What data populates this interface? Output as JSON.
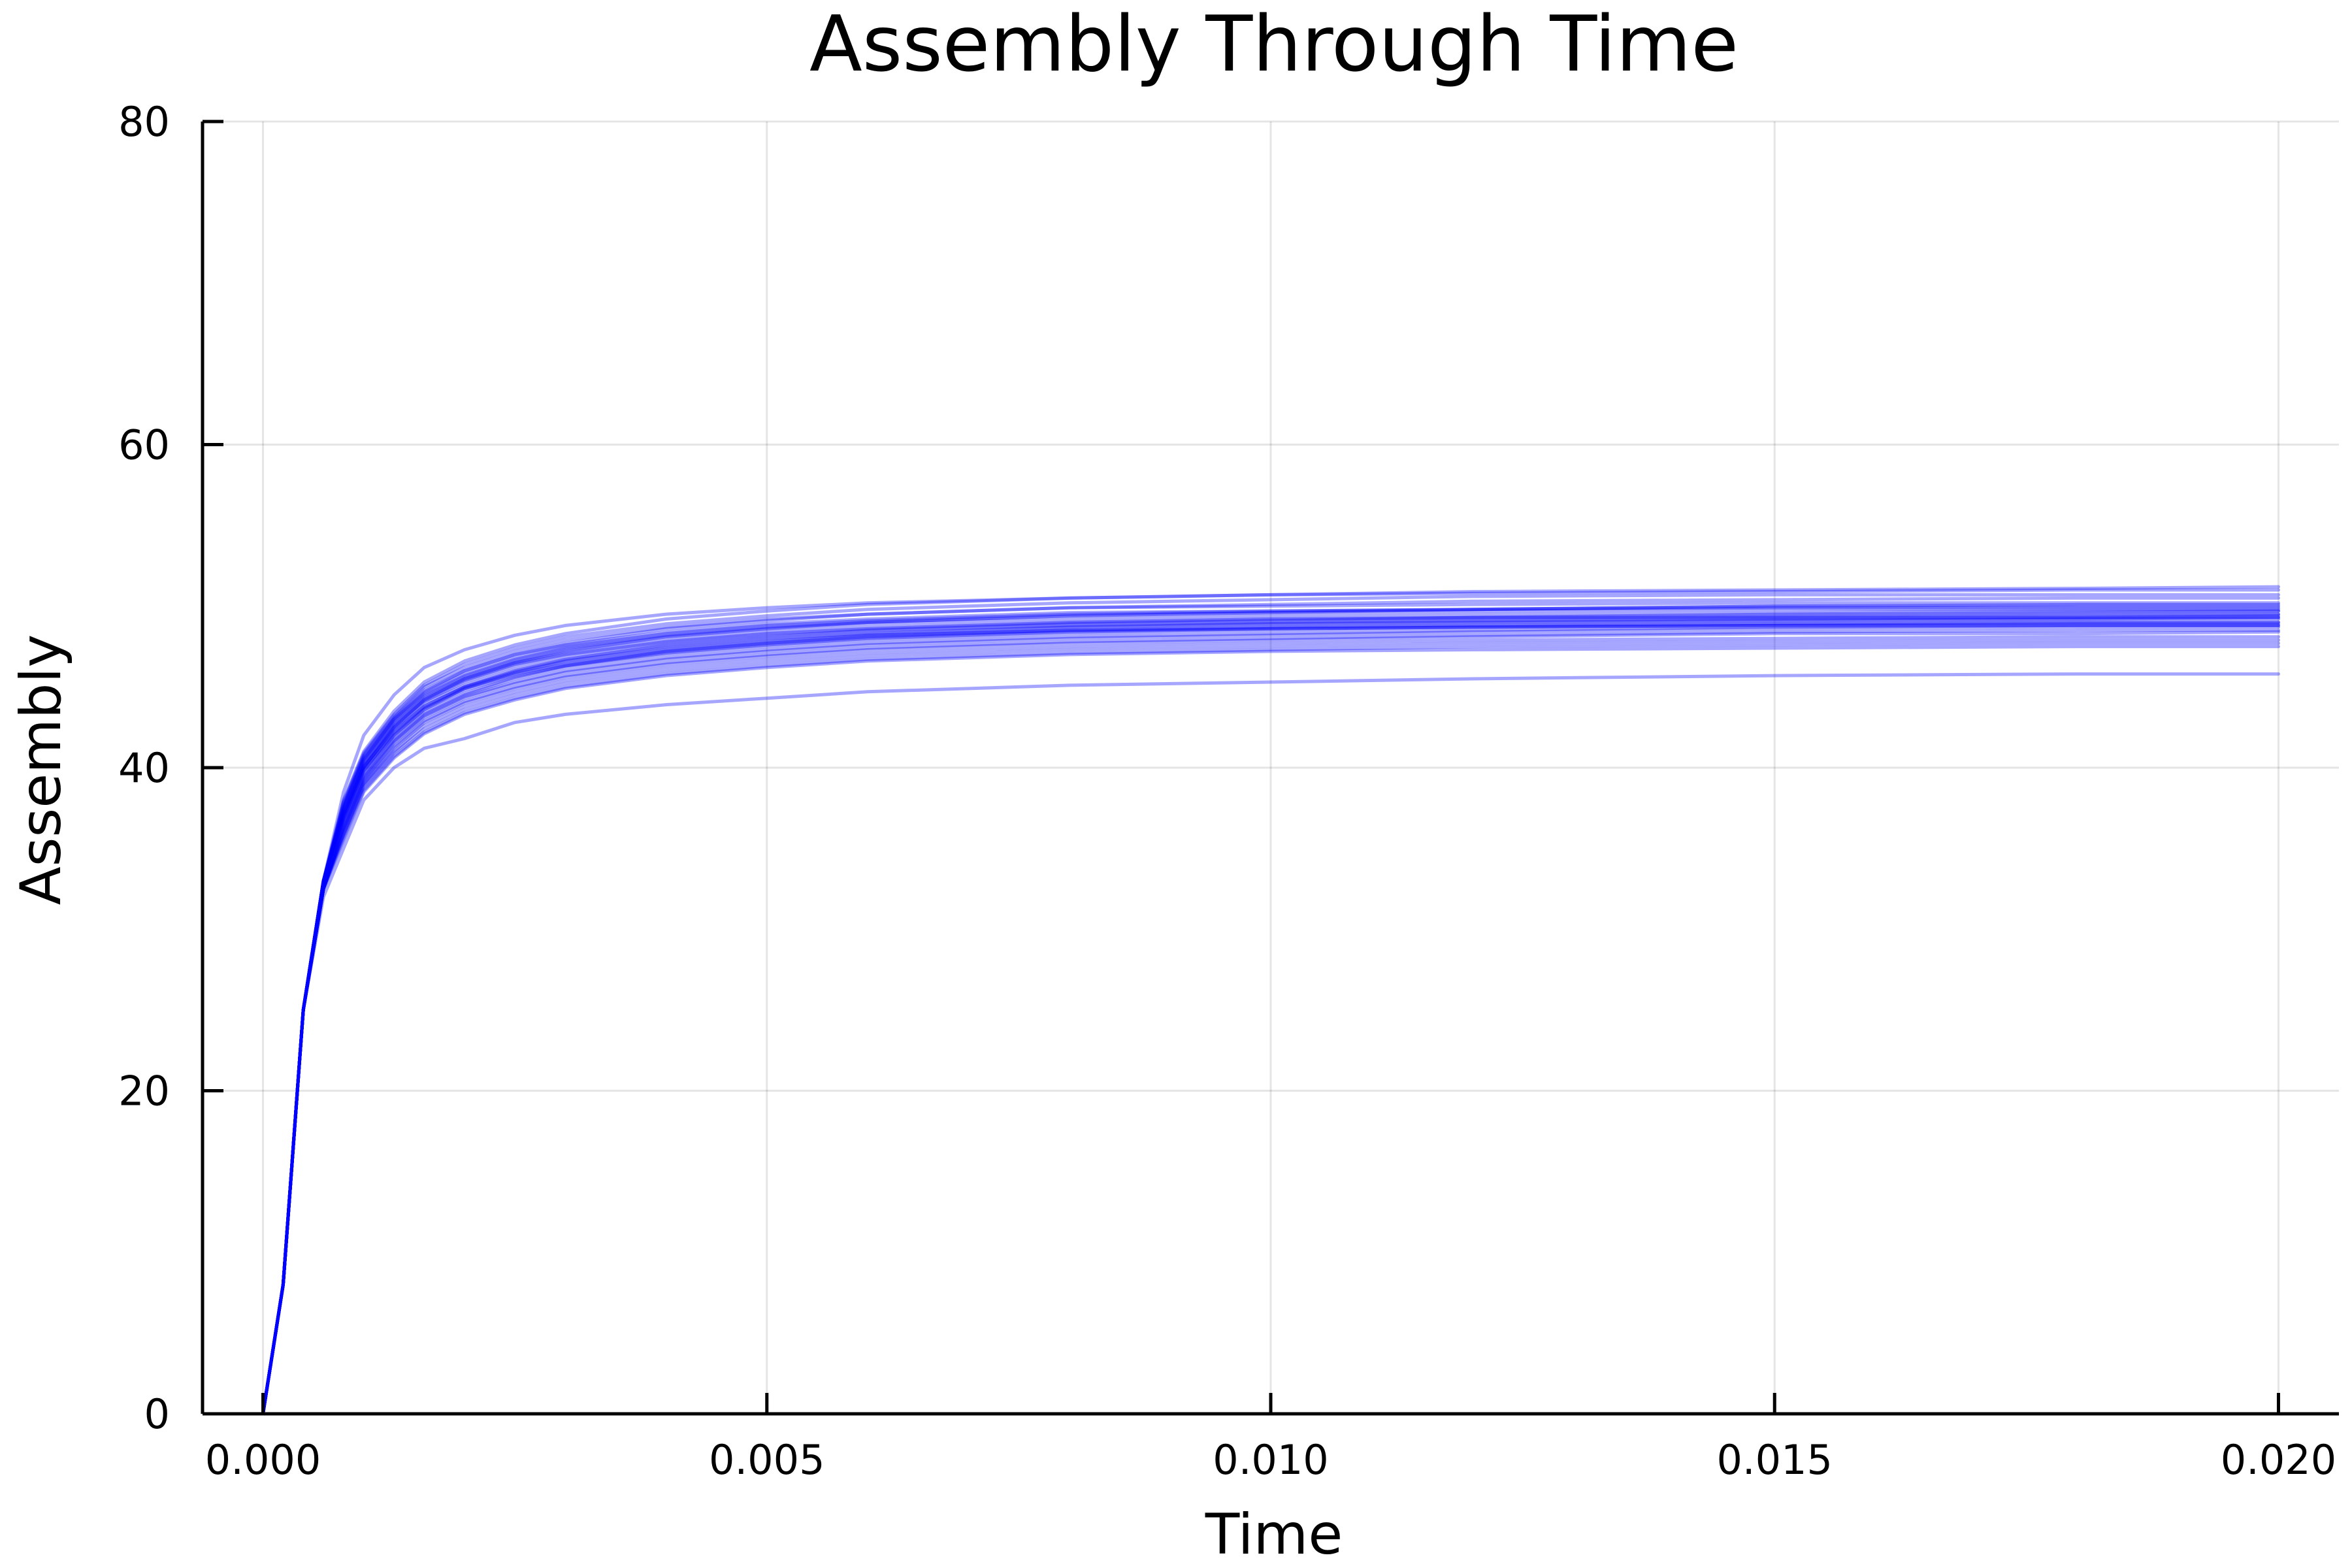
{
  "chart_data": {
    "type": "line",
    "title": "Assembly Through Time",
    "xlabel": "Time",
    "ylabel": "Assembly",
    "xlim": [
      -0.0006,
      0.0206
    ],
    "ylim": [
      0,
      80
    ],
    "grid": true,
    "legend": "none",
    "line_color": "#0000ff",
    "line_opacity": 0.35,
    "x_ticks": [
      {
        "value": 0.0,
        "label": "0.000"
      },
      {
        "value": 0.005,
        "label": "0.005"
      },
      {
        "value": 0.01,
        "label": "0.010"
      },
      {
        "value": 0.015,
        "label": "0.015"
      },
      {
        "value": 0.02,
        "label": "0.020"
      }
    ],
    "y_ticks": [
      {
        "value": 0,
        "label": "0"
      },
      {
        "value": 20,
        "label": "20"
      },
      {
        "value": 40,
        "label": "40"
      },
      {
        "value": 60,
        "label": "60"
      },
      {
        "value": 80,
        "label": "80"
      }
    ],
    "x": [
      0,
      0.0002,
      0.0004,
      0.0006,
      0.0008,
      0.001,
      0.0013,
      0.0016,
      0.002,
      0.0025,
      0.003,
      0.004,
      0.005,
      0.006,
      0.008,
      0.01,
      0.012,
      0.015,
      0.018,
      0.02
    ],
    "series": [
      {
        "values": [
          0,
          8,
          25,
          33,
          38,
          41,
          43.5,
          45.3,
          46.6,
          47.6,
          48.3,
          49.2,
          49.7,
          50.1,
          50.5,
          50.7,
          50.8,
          50.9,
          51.0,
          51.0
        ]
      },
      {
        "values": [
          0,
          8,
          25,
          33,
          37.5,
          40.5,
          43,
          44.7,
          46,
          47,
          47.7,
          48.6,
          49.1,
          49.5,
          49.9,
          50.1,
          50.3,
          50.4,
          50.5,
          50.5
        ]
      },
      {
        "values": [
          0,
          8,
          25,
          33,
          38.5,
          42,
          44.5,
          46.2,
          47.3,
          48.2,
          48.8,
          49.5,
          49.9,
          50.2,
          50.5,
          50.7,
          50.9,
          51.0,
          51.1,
          51.2
        ]
      },
      {
        "values": [
          0,
          8,
          25,
          32.5,
          37,
          40,
          42.5,
          44.2,
          45.5,
          46.5,
          47.2,
          48.1,
          48.6,
          49.0,
          49.4,
          49.6,
          49.8,
          50.0,
          50.1,
          50.1
        ]
      },
      {
        "values": [
          0,
          8,
          25,
          33,
          37.8,
          40.8,
          43.2,
          45,
          46.2,
          47.2,
          47.9,
          48.7,
          49.2,
          49.5,
          49.9,
          50.0,
          50.1,
          50.2,
          50.2,
          50.2
        ]
      },
      {
        "values": [
          0,
          8,
          25,
          32.5,
          36.8,
          39.8,
          42.2,
          43.8,
          45,
          46,
          46.7,
          47.6,
          48.1,
          48.5,
          48.9,
          49.1,
          49.3,
          49.5,
          49.6,
          49.7
        ]
      },
      {
        "values": [
          0,
          8,
          25,
          33,
          37.6,
          40.6,
          43,
          44.6,
          45.8,
          46.8,
          47.5,
          48.3,
          48.8,
          49.1,
          49.5,
          49.7,
          49.8,
          50.0,
          50.0,
          50.0
        ]
      },
      {
        "values": [
          0,
          8,
          25,
          32.5,
          36.5,
          39.5,
          41.8,
          43.4,
          44.6,
          45.6,
          46.3,
          47.2,
          47.7,
          48.1,
          48.5,
          48.7,
          48.9,
          49.1,
          49.2,
          49.3
        ]
      },
      {
        "values": [
          0,
          8,
          25,
          33,
          37.7,
          40.7,
          43.1,
          44.8,
          46,
          47,
          47.6,
          48.4,
          48.9,
          49.2,
          49.6,
          49.7,
          49.8,
          49.9,
          49.9,
          49.9
        ]
      },
      {
        "values": [
          0,
          8,
          25,
          32.5,
          36.6,
          39.6,
          42,
          43.6,
          44.9,
          45.9,
          46.6,
          47.4,
          47.9,
          48.3,
          48.7,
          48.9,
          49.1,
          49.3,
          49.4,
          49.5
        ]
      },
      {
        "values": [
          0,
          8,
          25,
          33,
          37.4,
          40.4,
          42.8,
          44.4,
          45.6,
          46.6,
          47.3,
          48.1,
          48.6,
          48.9,
          49.2,
          49.4,
          49.5,
          49.6,
          49.7,
          49.7
        ]
      },
      {
        "values": [
          0,
          8,
          25,
          32.5,
          36.4,
          39.4,
          41.7,
          43.3,
          44.5,
          45.5,
          46.2,
          47.0,
          47.5,
          47.9,
          48.3,
          48.5,
          48.7,
          48.9,
          49.0,
          49.0
        ]
      },
      {
        "values": [
          0,
          8,
          25,
          33,
          37.2,
          40.2,
          42.6,
          44.2,
          45.4,
          46.4,
          47.0,
          47.8,
          48.3,
          48.6,
          49.0,
          49.2,
          49.3,
          49.4,
          49.5,
          49.5
        ]
      },
      {
        "values": [
          0,
          8,
          25,
          32.5,
          36.3,
          39.3,
          41.6,
          43.2,
          44.4,
          45.3,
          46.0,
          46.8,
          47.3,
          47.7,
          48.1,
          48.3,
          48.5,
          48.7,
          48.8,
          48.8
        ]
      },
      {
        "values": [
          0,
          8,
          25,
          33,
          37.3,
          40.3,
          42.7,
          44.3,
          45.5,
          46.5,
          47.1,
          47.9,
          48.4,
          48.7,
          49.0,
          49.2,
          49.3,
          49.3,
          49.3,
          49.4
        ]
      },
      {
        "values": [
          0,
          8,
          25,
          32.5,
          36.2,
          39.2,
          41.5,
          43.1,
          44.3,
          45.2,
          45.9,
          46.7,
          47.2,
          47.6,
          48.0,
          48.2,
          48.4,
          48.6,
          48.7,
          48.7
        ]
      },
      {
        "values": [
          0,
          8,
          25,
          33,
          37.1,
          40.1,
          42.5,
          44.1,
          45.3,
          46.3,
          46.9,
          47.7,
          48.2,
          48.5,
          48.8,
          49.0,
          49.1,
          49.2,
          49.3,
          49.3
        ]
      },
      {
        "values": [
          0,
          8,
          25,
          32.5,
          36.1,
          39.1,
          41.3,
          42.9,
          44.1,
          45.0,
          45.7,
          46.5,
          47.0,
          47.4,
          47.8,
          48.0,
          48.2,
          48.4,
          48.5,
          48.5
        ]
      },
      {
        "values": [
          0,
          8,
          25,
          33,
          37,
          40,
          42.4,
          44,
          45.1,
          46.1,
          46.7,
          47.5,
          48.0,
          48.3,
          48.7,
          48.9,
          49.0,
          49.1,
          49.2,
          49.2
        ]
      },
      {
        "values": [
          0,
          8,
          25,
          32.5,
          36,
          39,
          41.2,
          42.8,
          44,
          44.9,
          45.6,
          46.4,
          46.9,
          47.3,
          47.7,
          47.9,
          48.1,
          48.3,
          48.3,
          48.4
        ]
      },
      {
        "values": [
          0,
          8,
          25,
          33,
          37.1,
          40.1,
          42.3,
          43.8,
          45,
          45.9,
          46.5,
          47.3,
          47.8,
          48.2,
          48.5,
          48.7,
          48.8,
          48.9,
          49.0,
          49.0
        ]
      },
      {
        "values": [
          0,
          8,
          25,
          32.5,
          35.9,
          38.9,
          41,
          42.6,
          43.8,
          44.7,
          45.4,
          46.2,
          46.7,
          47.1,
          47.5,
          47.7,
          47.9,
          48.0,
          48.1,
          48.1
        ]
      },
      {
        "values": [
          0,
          8,
          25,
          33,
          36.8,
          39.8,
          42,
          43.6,
          44.8,
          45.7,
          46.3,
          47.1,
          47.6,
          48.0,
          48.4,
          48.6,
          48.7,
          48.8,
          48.9,
          48.9
        ]
      },
      {
        "values": [
          0,
          8,
          25,
          32.5,
          35.8,
          38.8,
          40.9,
          42.4,
          43.6,
          44.5,
          45.2,
          46.0,
          46.5,
          46.9,
          47.3,
          47.5,
          47.7,
          47.8,
          47.9,
          47.9
        ]
      },
      {
        "values": [
          0,
          8,
          25,
          33,
          36.9,
          39.9,
          42.1,
          43.7,
          44.9,
          45.8,
          46.4,
          47.2,
          47.7,
          48.1,
          48.5,
          48.6,
          48.7,
          48.8,
          48.8,
          48.8
        ]
      },
      {
        "values": [
          0,
          8,
          25,
          32.5,
          35.6,
          38.6,
          40.7,
          42.2,
          43.4,
          44.3,
          45.0,
          45.8,
          46.3,
          46.7,
          47.1,
          47.3,
          47.5,
          47.6,
          47.7,
          47.7
        ]
      },
      {
        "values": [
          0,
          8,
          25,
          33,
          37.5,
          40.5,
          42.9,
          44.5,
          45.7,
          46.7,
          47.4,
          48.2,
          48.7,
          49.0,
          49.4,
          49.6,
          49.7,
          49.8,
          49.8,
          49.8
        ]
      },
      {
        "values": [
          0,
          8,
          25,
          32.5,
          35.5,
          38.5,
          40.6,
          42.1,
          43.3,
          44.2,
          44.9,
          45.7,
          46.2,
          46.6,
          47.0,
          47.2,
          47.3,
          47.4,
          47.5,
          47.5
        ]
      },
      {
        "values": [
          0,
          8,
          25,
          32,
          35,
          38,
          40,
          41.2,
          41.8,
          42.8,
          43.3,
          43.9,
          44.3,
          44.7,
          45.1,
          45.3,
          45.5,
          45.7,
          45.8,
          45.8
        ]
      },
      {
        "values": [
          0,
          8,
          25,
          33,
          37.9,
          40.9,
          43.3,
          45.1,
          46.4,
          47.4,
          48.1,
          48.9,
          49.4,
          49.8,
          50.2,
          50.4,
          50.6,
          50.7,
          50.7,
          50.7
        ]
      }
    ]
  }
}
